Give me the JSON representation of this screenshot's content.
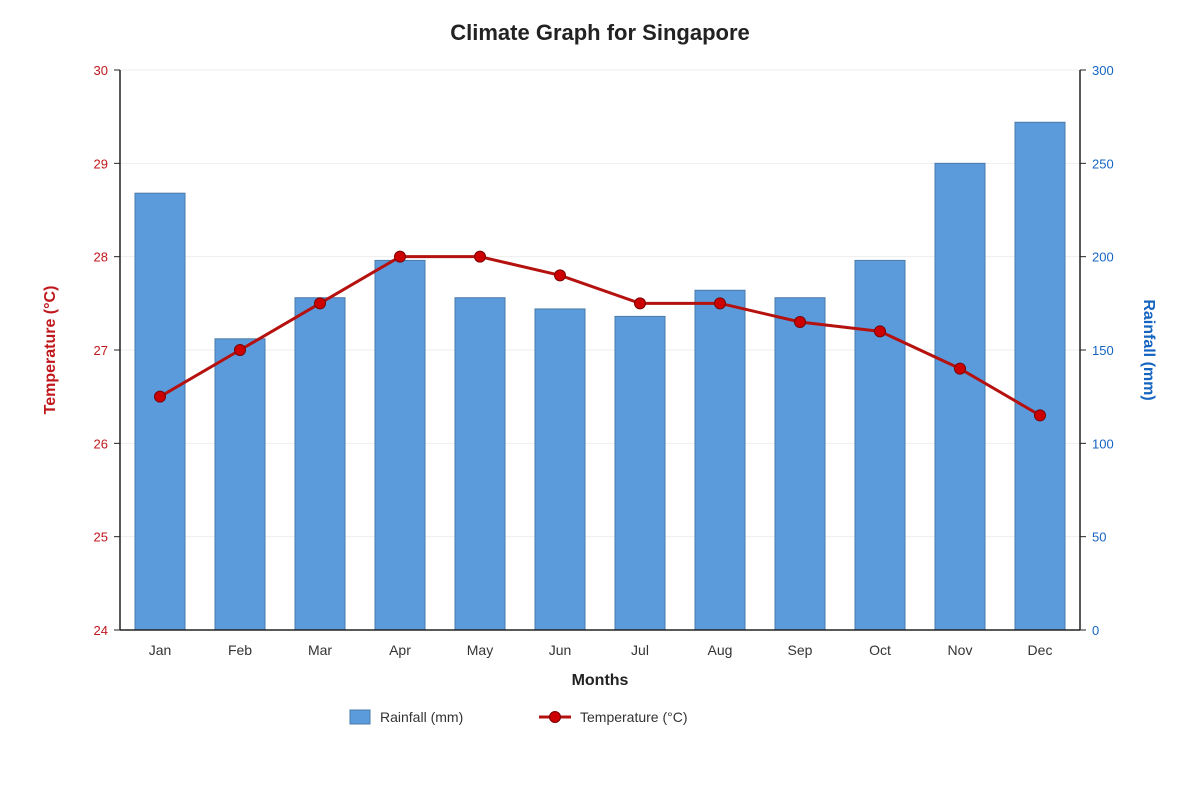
{
  "chart_data": {
    "type": "bar",
    "title": "Climate Graph for Singapore",
    "xlabel": "Months",
    "categories": [
      "Jan",
      "Feb",
      "Mar",
      "Apr",
      "May",
      "Jun",
      "Jul",
      "Aug",
      "Sep",
      "Oct",
      "Nov",
      "Dec"
    ],
    "y_left": {
      "label": "Temperature (°C)",
      "range": [
        24,
        30
      ],
      "ticks": [
        "24",
        "25",
        "26",
        "27",
        "28",
        "29",
        "30"
      ],
      "color": "#c0171c"
    },
    "y_right": {
      "label": "Rainfall (mm)",
      "range": [
        0,
        300
      ],
      "ticks": [
        "0",
        "50",
        "100",
        "150",
        "200",
        "250",
        "300"
      ],
      "color": "#1565c0"
    },
    "series": [
      {
        "name": "Rainfall (mm)",
        "type": "bar",
        "axis": "right",
        "color": "#5b9bdc",
        "values": [
          234,
          156,
          178,
          198,
          178,
          172,
          168,
          182,
          178,
          198,
          250,
          272
        ]
      },
      {
        "name": "Temperature (°C)",
        "type": "line",
        "axis": "left",
        "color": "#b5120f",
        "values": [
          26.5,
          27.0,
          27.5,
          28.0,
          28.0,
          27.8,
          27.5,
          27.5,
          27.3,
          27.2,
          26.8,
          26.3
        ]
      }
    ],
    "grid": true,
    "legend_position": "bottom-center"
  }
}
